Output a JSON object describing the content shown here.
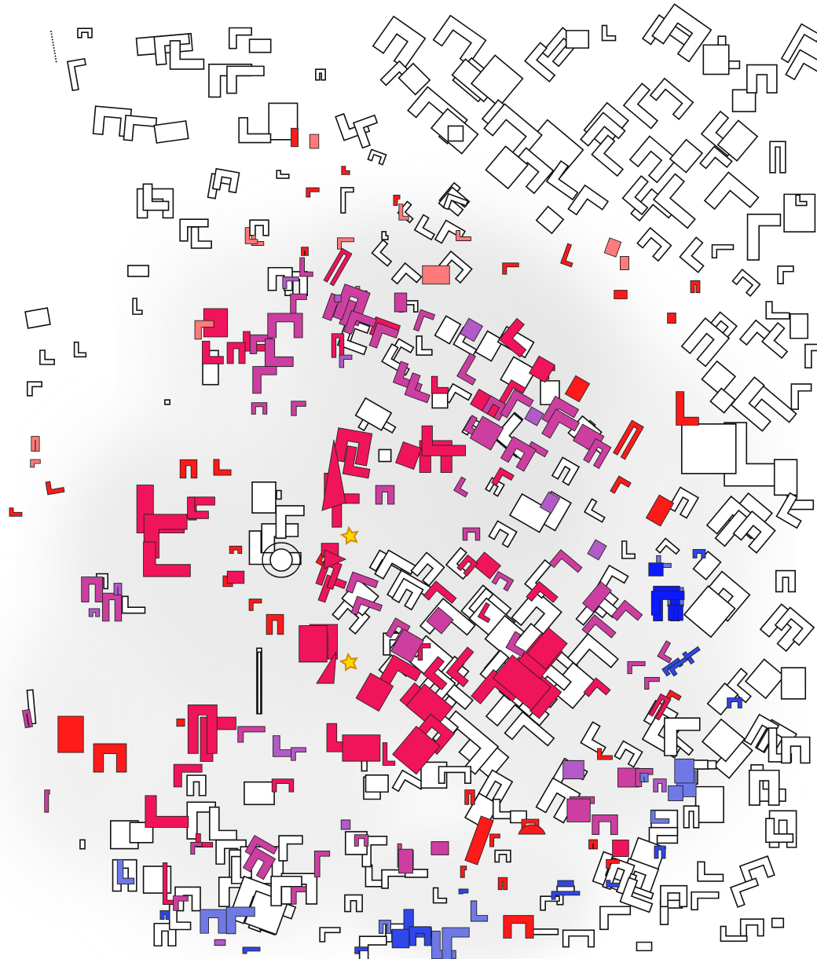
{
  "map": {
    "background": "#ffffff",
    "haze_color": "#c8c8c8",
    "outline_stroke": "#111111",
    "palette": {
      "red": "#ff1a1a",
      "crimson": "#f0145a",
      "rose": "#e62e6e",
      "salmon": "#ff7a7a",
      "magenta": "#cc3fa0",
      "violet": "#b25ac8",
      "lavender": "#a46ad2",
      "periwinkle": "#6f79e6",
      "blue": "#2f46e8",
      "deep_blue": "#0d1aff"
    },
    "markers": [
      {
        "name": "yellow-star-marker-north",
        "color": "#ffd700"
      },
      {
        "name": "yellow-star-marker-south",
        "color": "#ffd700"
      }
    ]
  }
}
